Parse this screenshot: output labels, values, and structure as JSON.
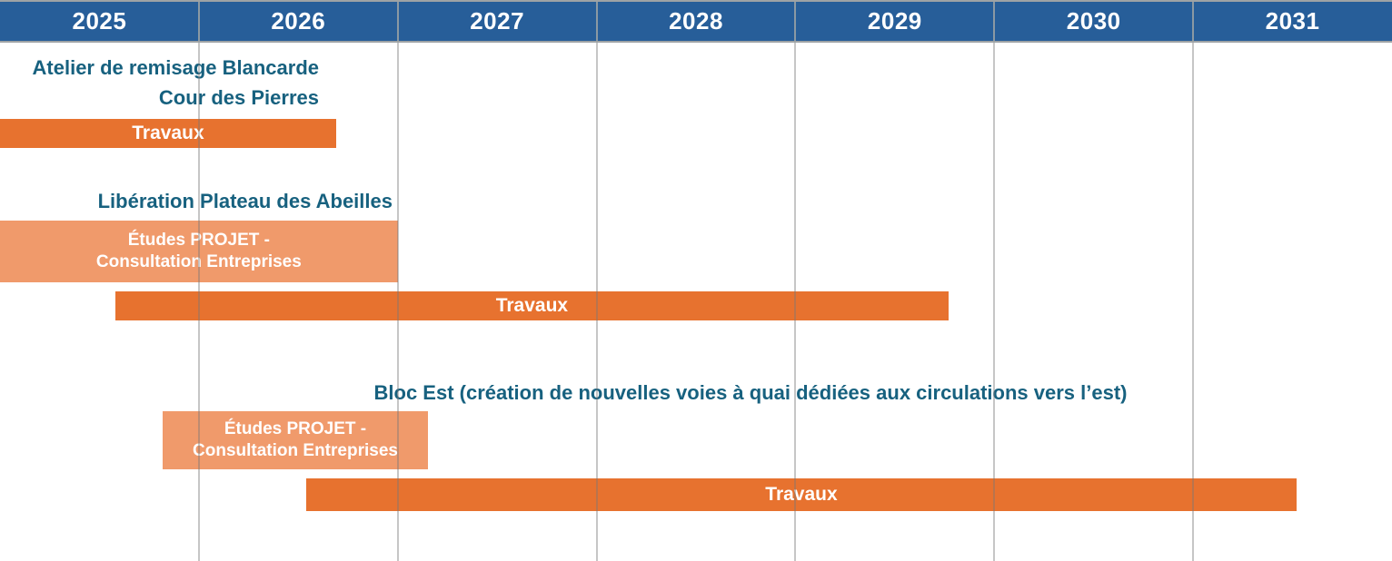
{
  "colors": {
    "header_blue": "#275e99",
    "title_blue": "#17617f",
    "works_orange": "#e7722f",
    "studies_orange": "#f09a6b",
    "frame_gray": "#9ea3a5",
    "background": "#ffffff",
    "year_text": "#ffffff",
    "bar_text": "#ffffff"
  },
  "chart_data": {
    "type": "bar",
    "variant": "gantt-timeline",
    "title": "",
    "xlabel": "",
    "ylabel": "",
    "x_axis": {
      "unit": "year",
      "ticks": [
        "2025",
        "2026",
        "2027",
        "2028",
        "2029",
        "2030",
        "2031"
      ],
      "range": [
        2025,
        2032
      ],
      "gridlines": true
    },
    "legend_position": "none",
    "projects": [
      {
        "title_lines": [
          "Atelier de remisage Blancarde",
          "Cour des Pierres"
        ],
        "bars": [
          {
            "kind": "travaux",
            "label_lines": [
              "Travaux"
            ],
            "start_year": 2025.0,
            "end_year": 2026.69
          }
        ]
      },
      {
        "title_lines": [
          "Libération Plateau des Abeilles"
        ],
        "bars": [
          {
            "kind": "etudes",
            "label_lines": [
              "Études PROJET -",
              "Consultation Entreprises"
            ],
            "start_year": 2025.0,
            "end_year": 2027.0
          },
          {
            "kind": "travaux",
            "label_lines": [
              "Travaux"
            ],
            "start_year": 2025.58,
            "end_year": 2029.77
          }
        ]
      },
      {
        "title_lines": [
          "Bloc Est (création de nouvelles voies à quai dédiées aux circulations vers l’est)"
        ],
        "bars": [
          {
            "kind": "etudes",
            "label_lines": [
              "Études PROJET -",
              "Consultation Entreprises"
            ],
            "start_year": 2025.82,
            "end_year": 2027.15
          },
          {
            "kind": "travaux",
            "label_lines": [
              "Travaux"
            ],
            "start_year": 2026.54,
            "end_year": 2031.52
          }
        ]
      }
    ]
  }
}
